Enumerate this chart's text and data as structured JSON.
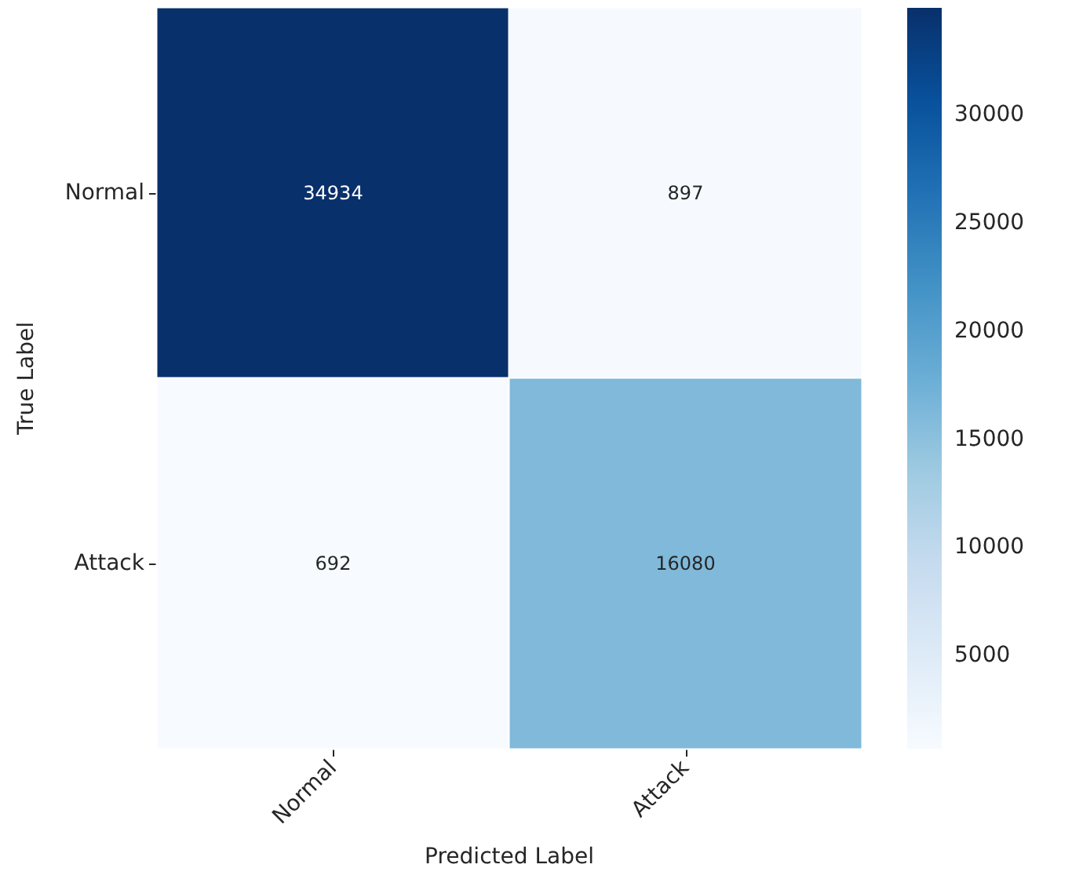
{
  "chart_data": {
    "type": "heatmap",
    "xlabel": "Predicted Label",
    "ylabel": "True Label",
    "categories": [
      "Normal",
      "Attack"
    ],
    "y_categories": [
      "Normal",
      "Attack"
    ],
    "cells": [
      [
        34934,
        897
      ],
      [
        692,
        16080
      ]
    ],
    "data_labels": true,
    "clim": [
      692,
      34934
    ],
    "cticks": [
      5000,
      10000,
      15000,
      20000,
      25000,
      30000
    ]
  }
}
